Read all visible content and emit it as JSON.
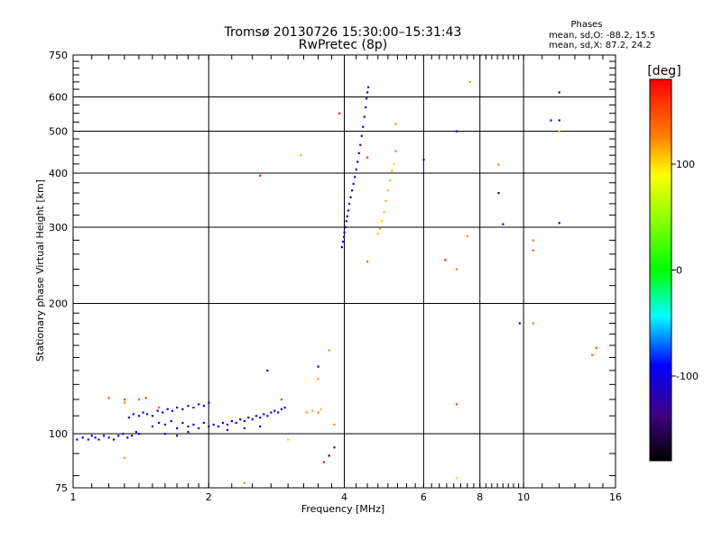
{
  "chart_data": {
    "type": "scatter",
    "title": "Tromsø 20130726 15:30:00–15:31:43",
    "subtitle": "RwPretec (8p)",
    "info_header": "Phases",
    "info_line1": "mean, sd,O: -88.2, 15.5",
    "info_line2": "mean, sd,X:  87.2, 24.2",
    "xlabel": "Frequency [MHz]",
    "ylabel": "Stationary phase Virtual Height [km]",
    "x_scale": "log",
    "y_scale": "log",
    "xlim": [
      1,
      16
    ],
    "ylim": [
      75,
      750
    ],
    "x_major_ticks": [
      1,
      2,
      4,
      6,
      8,
      10,
      16
    ],
    "x_tick_labels": [
      "1",
      "2",
      "4",
      "6",
      "8",
      "10",
      "16"
    ],
    "y_major_ticks": [
      75,
      100,
      200,
      300,
      400,
      500,
      600,
      750
    ],
    "y_tick_labels": [
      "75",
      "100",
      "200",
      "300",
      "400",
      "500",
      "600",
      "750"
    ],
    "grid": true,
    "colorbar": {
      "label": "[deg]",
      "range": [
        -180,
        180
      ],
      "ticks": [
        100,
        0,
        -100
      ],
      "tick_labels": [
        "100",
        "0",
        "-100"
      ]
    },
    "series": [
      {
        "points": [
          [
            1.02,
            97,
            -100
          ],
          [
            1.05,
            98,
            -110
          ],
          [
            1.08,
            97,
            -105
          ],
          [
            1.1,
            99,
            -100
          ],
          [
            1.12,
            98,
            -115
          ],
          [
            1.14,
            97,
            -100
          ],
          [
            1.17,
            99,
            -108
          ],
          [
            1.2,
            98,
            -112
          ],
          [
            1.23,
            97,
            -100
          ],
          [
            1.26,
            99,
            -103
          ],
          [
            1.29,
            100,
            -110
          ],
          [
            1.32,
            98,
            -100
          ],
          [
            1.35,
            99,
            -107
          ],
          [
            1.38,
            101,
            -115
          ],
          [
            1.4,
            100,
            -100
          ],
          [
            1.33,
            109,
            -100
          ],
          [
            1.36,
            111,
            -105
          ],
          [
            1.4,
            110,
            -112
          ],
          [
            1.43,
            112,
            -100
          ],
          [
            1.46,
            111,
            -108
          ],
          [
            1.5,
            110,
            -100
          ],
          [
            1.54,
            113,
            -110
          ],
          [
            1.58,
            112,
            -103
          ],
          [
            1.62,
            114,
            -100
          ],
          [
            1.66,
            113,
            -112
          ],
          [
            1.7,
            115,
            -100
          ],
          [
            1.75,
            114,
            -108
          ],
          [
            1.8,
            116,
            -100
          ],
          [
            1.85,
            115,
            -106
          ],
          [
            1.9,
            117,
            -110
          ],
          [
            1.95,
            116,
            -100
          ],
          [
            2.0,
            118,
            -105
          ],
          [
            1.5,
            104,
            -100
          ],
          [
            1.55,
            106,
            -110
          ],
          [
            1.6,
            105,
            -100
          ],
          [
            1.65,
            107,
            -105
          ],
          [
            1.7,
            103,
            -112
          ],
          [
            1.75,
            106,
            -100
          ],
          [
            1.8,
            104,
            -108
          ],
          [
            1.85,
            105,
            -100
          ],
          [
            1.9,
            103,
            -110
          ],
          [
            1.95,
            106,
            -100
          ],
          [
            2.0,
            104,
            -105
          ],
          [
            2.05,
            105,
            -100
          ],
          [
            2.1,
            104,
            -110
          ],
          [
            2.15,
            106,
            -100
          ],
          [
            2.2,
            105,
            -105
          ],
          [
            2.25,
            107,
            -100
          ],
          [
            2.3,
            106,
            -112
          ],
          [
            2.35,
            108,
            -100
          ],
          [
            2.4,
            107,
            -108
          ],
          [
            2.45,
            109,
            -100
          ],
          [
            2.5,
            108,
            -105
          ],
          [
            2.55,
            110,
            -100
          ],
          [
            2.6,
            109,
            -110
          ],
          [
            2.65,
            111,
            -100
          ],
          [
            2.7,
            110,
            -105
          ],
          [
            2.75,
            112,
            -100
          ],
          [
            2.8,
            113,
            -108
          ],
          [
            2.85,
            112,
            -100
          ],
          [
            2.9,
            114,
            -110
          ],
          [
            2.95,
            115,
            -100
          ],
          [
            1.6,
            100,
            -100
          ],
          [
            1.7,
            99,
            -110
          ],
          [
            1.8,
            101,
            -100
          ],
          [
            2.2,
            102,
            -105
          ],
          [
            2.4,
            103,
            -100
          ],
          [
            2.6,
            104,
            -112
          ],
          [
            3.95,
            270,
            -100
          ],
          [
            3.97,
            278,
            -105
          ],
          [
            3.99,
            285,
            -110
          ],
          [
            4.0,
            292,
            -100
          ],
          [
            4.02,
            300,
            -108
          ],
          [
            4.04,
            310,
            -100
          ],
          [
            4.06,
            318,
            -112
          ],
          [
            4.08,
            328,
            -100
          ],
          [
            4.1,
            340,
            -105
          ],
          [
            4.13,
            352,
            -100
          ],
          [
            4.16,
            365,
            -110
          ],
          [
            4.19,
            378,
            -100
          ],
          [
            4.22,
            392,
            -105
          ],
          [
            4.25,
            408,
            -100
          ],
          [
            4.28,
            425,
            -108
          ],
          [
            4.31,
            445,
            -100
          ],
          [
            4.34,
            465,
            -110
          ],
          [
            4.37,
            488,
            -100
          ],
          [
            4.4,
            512,
            -105
          ],
          [
            4.43,
            540,
            -100
          ],
          [
            4.46,
            568,
            -110
          ],
          [
            4.48,
            595,
            -100
          ],
          [
            4.5,
            615,
            -105
          ],
          [
            4.52,
            632,
            -100
          ]
        ]
      },
      {
        "points": [
          [
            4.75,
            290,
            110
          ],
          [
            4.8,
            298,
            115
          ],
          [
            4.85,
            310,
            105
          ],
          [
            4.9,
            325,
            108
          ],
          [
            4.95,
            345,
            112
          ],
          [
            5.0,
            365,
            105
          ],
          [
            5.05,
            385,
            110
          ],
          [
            5.1,
            405,
            115
          ],
          [
            5.15,
            420,
            100
          ],
          [
            3.3,
            112,
            120
          ],
          [
            3.4,
            113,
            115
          ],
          [
            3.5,
            112,
            125
          ],
          [
            3.55,
            114,
            110
          ],
          [
            1.3,
            118,
            130
          ],
          [
            1.4,
            120,
            135
          ],
          [
            1.55,
            115,
            140
          ],
          [
            1.2,
            121,
            145
          ]
        ]
      },
      {
        "points": [
          [
            3.9,
            550,
            170
          ],
          [
            4.5,
            250,
            140
          ],
          [
            4.5,
            435,
            160
          ],
          [
            5.2,
            520,
            125
          ],
          [
            5.2,
            450,
            130
          ],
          [
            2.6,
            395,
            175
          ],
          [
            3.2,
            440,
            115
          ],
          [
            3.8,
            105,
            120
          ],
          [
            3.7,
            156,
            125
          ],
          [
            2.4,
            77,
            120
          ],
          [
            3.0,
            97,
            60
          ],
          [
            1.3,
            88,
            120
          ],
          [
            3.6,
            86,
            175
          ],
          [
            3.7,
            89,
            -160
          ],
          [
            6.7,
            252,
            170
          ],
          [
            7.1,
            240,
            125
          ],
          [
            7.1,
            117,
            150
          ],
          [
            7.1,
            79,
            60
          ],
          [
            7.5,
            286,
            120
          ],
          [
            7.6,
            650,
            120
          ],
          [
            8.8,
            419,
            125
          ],
          [
            6.0,
            430,
            -110
          ],
          [
            7.1,
            500,
            -115
          ],
          [
            8.8,
            360,
            -130
          ],
          [
            9.0,
            305,
            -130
          ],
          [
            9.8,
            180,
            -100
          ],
          [
            10.5,
            180,
            130
          ],
          [
            10.5,
            265,
            140
          ],
          [
            10.5,
            280,
            135
          ],
          [
            11.5,
            530,
            -110
          ],
          [
            12.0,
            530,
            -150
          ],
          [
            12.0,
            500,
            110
          ],
          [
            12.0,
            307,
            -110
          ],
          [
            12.0,
            615,
            -120
          ],
          [
            14.2,
            152,
            140
          ],
          [
            14.5,
            158,
            150
          ],
          [
            2.7,
            140,
            -150
          ],
          [
            3.5,
            143,
            -150
          ],
          [
            3.8,
            93,
            -140
          ],
          [
            3.5,
            134,
            115
          ],
          [
            2.9,
            120,
            150
          ],
          [
            1.3,
            120,
            150
          ],
          [
            1.45,
            121,
            150
          ]
        ]
      }
    ]
  }
}
